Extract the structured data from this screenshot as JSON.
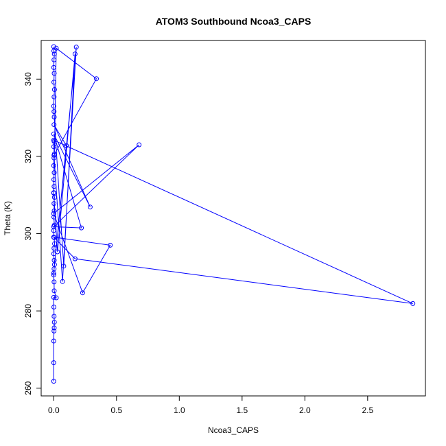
{
  "chart_data": {
    "type": "line",
    "title": "ATOM3 Southbound Ncoa3_CAPS",
    "xlabel": "Ncoa3_CAPS",
    "ylabel": "Theta (K)",
    "xlim": [
      -0.1,
      2.96
    ],
    "ylim": [
      258,
      350
    ],
    "xticks": [
      0.0,
      0.5,
      1.0,
      1.5,
      2.0,
      2.5
    ],
    "xtick_labels": [
      "0.0",
      "0.5",
      "1.0",
      "1.5",
      "2.0",
      "2.5"
    ],
    "yticks": [
      260,
      280,
      300,
      320,
      340
    ],
    "ytick_labels": [
      "260",
      "280",
      "300",
      "320",
      "340"
    ],
    "grid": false,
    "legend": "none",
    "marker": "open-circle",
    "series": [
      {
        "color": "#0000ff",
        "points": [
          [
            0.0,
            261.8
          ],
          [
            0.0,
            266.6
          ],
          [
            0.0,
            272.2
          ],
          [
            0.002,
            274.8
          ],
          [
            0.004,
            275.6
          ],
          [
            0.005,
            277.1
          ],
          [
            0.003,
            278.6
          ],
          [
            0.001,
            281.0
          ],
          [
            0.0,
            283.5
          ],
          [
            0.02,
            283.4
          ],
          [
            0.004,
            285.2
          ],
          [
            0.003,
            287.5
          ],
          [
            0.0,
            289.3
          ],
          [
            0.003,
            290.9
          ],
          [
            0.006,
            292.0
          ],
          [
            0.004,
            293.1
          ],
          [
            0.0,
            294.8
          ],
          [
            0.002,
            296.2
          ],
          [
            0.007,
            297.4
          ],
          [
            0.003,
            299.0
          ],
          [
            0.0,
            300.8
          ],
          [
            0.005,
            302.2
          ],
          [
            0.001,
            304.3
          ],
          [
            0.004,
            305.9
          ],
          [
            0.002,
            307.8
          ],
          [
            0.006,
            309.4
          ],
          [
            0.0,
            310.6
          ],
          [
            0.003,
            312.2
          ],
          [
            0.001,
            314.0
          ],
          [
            0.004,
            315.8
          ],
          [
            0.0,
            317.6
          ],
          [
            0.002,
            319.6
          ],
          [
            0.005,
            320.6
          ],
          [
            0.0,
            322.5
          ],
          [
            0.003,
            323.9
          ],
          [
            0.0,
            324.2
          ],
          [
            2.86,
            281.9
          ],
          [
            0.17,
            293.5
          ],
          [
            0.0,
            299.1
          ],
          [
            0.45,
            297.0
          ],
          [
            0.23,
            284.7
          ],
          [
            0.0,
            305.2
          ],
          [
            0.68,
            323.0
          ],
          [
            0.0,
            301.8
          ],
          [
            0.22,
            301.5
          ],
          [
            0.0,
            325.8
          ],
          [
            0.29,
            306.9
          ],
          [
            0.002,
            328.2
          ],
          [
            0.1,
            322.8
          ],
          [
            0.0,
            289.8
          ],
          [
            0.18,
            348.3
          ],
          [
            0.07,
            287.6
          ],
          [
            0.002,
            320.3
          ],
          [
            0.34,
            340.1
          ],
          [
            0.02,
            348.0
          ],
          [
            0.0,
            310.5
          ],
          [
            0.03,
            295.3
          ],
          [
            0.17,
            346.5
          ],
          [
            0.08,
            291.6
          ],
          [
            0.004,
            330.2
          ],
          [
            0.002,
            331.6
          ],
          [
            0.0,
            333.0
          ],
          [
            0.003,
            335.4
          ],
          [
            0.006,
            337.3
          ],
          [
            0.001,
            339.2
          ],
          [
            0.004,
            341.5
          ],
          [
            0.0,
            343.0
          ],
          [
            0.002,
            345.0
          ],
          [
            0.005,
            346.5
          ],
          [
            0.001,
            347.3
          ],
          [
            0.0,
            348.4
          ]
        ]
      }
    ]
  }
}
